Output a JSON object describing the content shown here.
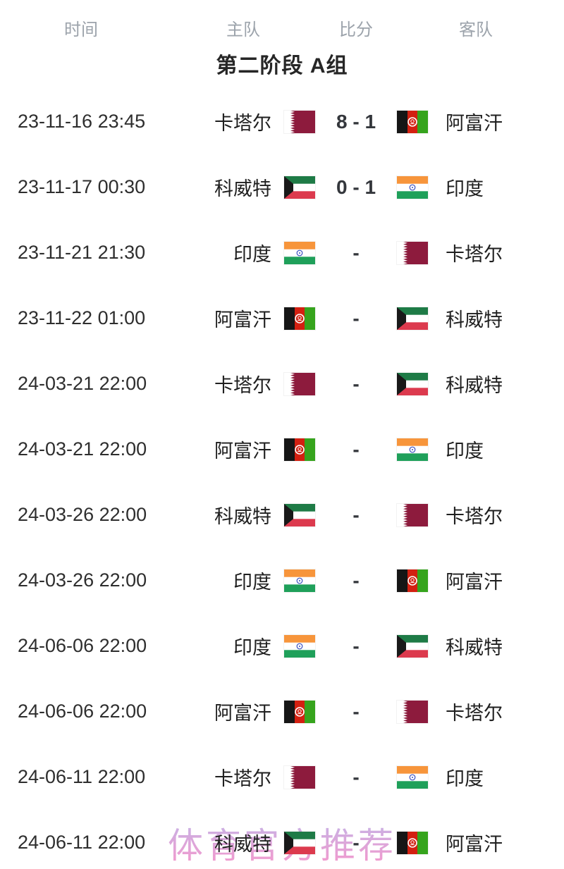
{
  "header": {
    "columns": [
      "时间",
      "主队",
      "比分",
      "客队"
    ]
  },
  "section_title": "第二阶段 A组",
  "watermark": "体育官方推荐",
  "flag_colors": {
    "qatar_maroon": "#8d1b3d",
    "afghan_black": "#161616",
    "afghan_red": "#d32011",
    "afghan_green": "#36a41d",
    "kuwait_green": "#1e7b46",
    "kuwait_red": "#dc3a4e",
    "kuwait_black": "#191919",
    "india_saffron": "#f7953b",
    "india_green": "#1fa05a",
    "india_navy": "#3a50c0",
    "watermark_pink": "#f68cc6"
  },
  "matches": [
    {
      "time": "23-11-16 23:45",
      "home": "卡塔尔",
      "home_flag": "qatar",
      "score": "8 - 1",
      "away": "阿富汗",
      "away_flag": "afghanistan"
    },
    {
      "time": "23-11-17 00:30",
      "home": "科威特",
      "home_flag": "kuwait",
      "score": "0 - 1",
      "away": "印度",
      "away_flag": "india"
    },
    {
      "time": "23-11-21 21:30",
      "home": "印度",
      "home_flag": "india",
      "score": "-",
      "away": "卡塔尔",
      "away_flag": "qatar"
    },
    {
      "time": "23-11-22 01:00",
      "home": "阿富汗",
      "home_flag": "afghanistan",
      "score": "-",
      "away": "科威特",
      "away_flag": "kuwait"
    },
    {
      "time": "24-03-21 22:00",
      "home": "卡塔尔",
      "home_flag": "qatar",
      "score": "-",
      "away": "科威特",
      "away_flag": "kuwait"
    },
    {
      "time": "24-03-21 22:00",
      "home": "阿富汗",
      "home_flag": "afghanistan",
      "score": "-",
      "away": "印度",
      "away_flag": "india"
    },
    {
      "time": "24-03-26 22:00",
      "home": "科威特",
      "home_flag": "kuwait",
      "score": "-",
      "away": "卡塔尔",
      "away_flag": "qatar"
    },
    {
      "time": "24-03-26 22:00",
      "home": "印度",
      "home_flag": "india",
      "score": "-",
      "away": "阿富汗",
      "away_flag": "afghanistan"
    },
    {
      "time": "24-06-06 22:00",
      "home": "印度",
      "home_flag": "india",
      "score": "-",
      "away": "科威特",
      "away_flag": "kuwait"
    },
    {
      "time": "24-06-06 22:00",
      "home": "阿富汗",
      "home_flag": "afghanistan",
      "score": "-",
      "away": "卡塔尔",
      "away_flag": "qatar"
    },
    {
      "time": "24-06-11 22:00",
      "home": "卡塔尔",
      "home_flag": "qatar",
      "score": "-",
      "away": "印度",
      "away_flag": "india"
    },
    {
      "time": "24-06-11 22:00",
      "home": "科威特",
      "home_flag": "kuwait",
      "score": "-",
      "away": "阿富汗",
      "away_flag": "afghanistan"
    }
  ]
}
